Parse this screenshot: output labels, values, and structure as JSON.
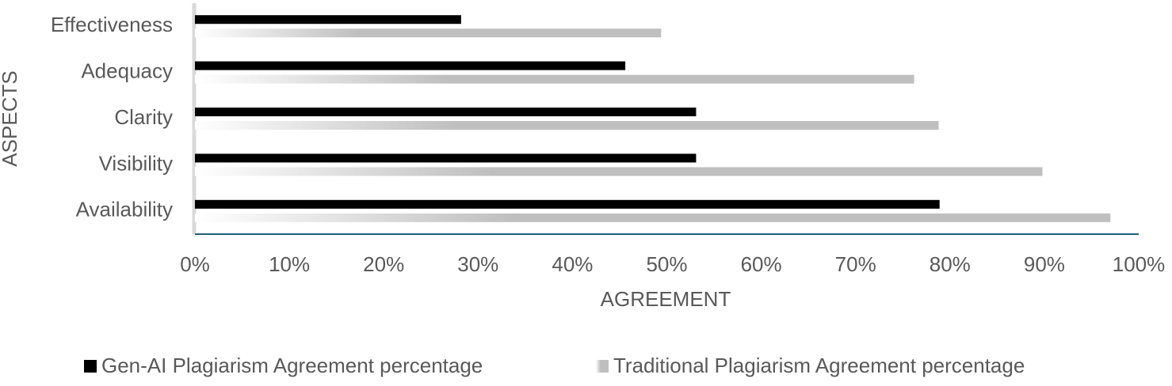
{
  "chart_data": {
    "type": "bar",
    "orientation": "horizontal",
    "x_label": "AGREEMENT",
    "y_label": "ASPECTS",
    "categories": [
      "Effectiveness",
      "Adequacy",
      "Clarity",
      "Visibility",
      "Availability"
    ],
    "series": [
      {
        "name": "Gen-AI Plagiarism Agreement percentage",
        "color": "#000000",
        "values": [
          28.2,
          45.6,
          53.1,
          53.1,
          78.9
        ]
      },
      {
        "name": "Traditional Plagiarism Agreement percentage",
        "color": "#bfbfbf",
        "values": [
          49.4,
          76.2,
          78.8,
          89.8,
          97.0
        ]
      }
    ],
    "xlim": [
      0,
      100
    ],
    "xticks": [
      {
        "value": 0,
        "label": "0%"
      },
      {
        "value": 10,
        "label": "10%"
      },
      {
        "value": 20,
        "label": "20%"
      },
      {
        "value": 30,
        "label": "30%"
      },
      {
        "value": 40,
        "label": "40%"
      },
      {
        "value": 50,
        "label": "50%"
      },
      {
        "value": 60,
        "label": "60%"
      },
      {
        "value": 70,
        "label": "70%"
      },
      {
        "value": 80,
        "label": "80%"
      },
      {
        "value": 90,
        "label": "90%"
      },
      {
        "value": 100,
        "label": "100%"
      }
    ],
    "grid": true,
    "legend": "bottom"
  }
}
